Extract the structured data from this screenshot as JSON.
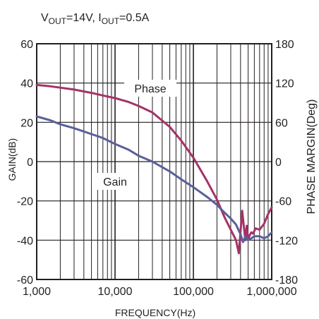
{
  "chart_data": {
    "type": "line",
    "title": "",
    "condition_text": {
      "v_main": "V",
      "v_sub": "OUT",
      "v_val": "=14V, ",
      "i_main": "I",
      "i_sub": "OUT",
      "i_val": "=0.5A"
    },
    "xlabel": "FREQUENCY(Hz)",
    "ylabel_left": "GAIN(dB)",
    "ylabel_right": "PHASE MARGIN(Deg)",
    "x_scale": "log",
    "xlim": [
      1000,
      1000000
    ],
    "x_ticks": [
      1000,
      10000,
      100000,
      1000000
    ],
    "x_tick_labels": [
      "1,000",
      "10,000",
      "100,000",
      "1,000,000"
    ],
    "ylim_left": [
      -60,
      60
    ],
    "y_ticks_left": [
      60,
      40,
      20,
      0,
      -20,
      -40,
      -60
    ],
    "y_tick_labels_left": [
      "60",
      "40",
      "20",
      "0",
      "-20",
      "-40",
      "-60"
    ],
    "ylim_right": [
      -180,
      180
    ],
    "y_ticks_right": [
      180,
      120,
      60,
      0,
      -60,
      -120,
      -180
    ],
    "y_tick_labels_right": [
      "180",
      "120",
      "60",
      "0",
      "-60",
      "-120",
      "-180"
    ],
    "grid": true,
    "series": [
      {
        "name": "Phase",
        "axis": "right",
        "color": "#a53267",
        "x": [
          1000,
          1500,
          2000,
          3000,
          5000,
          7000,
          10000,
          15000,
          20000,
          30000,
          50000,
          70000,
          100000,
          150000,
          200000,
          250000,
          300000,
          350000,
          380000,
          420000,
          440000,
          460000,
          480000,
          500000,
          520000,
          550000,
          580000,
          620000,
          700000,
          800000,
          900000,
          1000000
        ],
        "y": [
          117,
          115,
          113,
          110,
          105,
          101,
          97,
          91,
          85,
          75,
          53,
          32,
          6,
          -30,
          -58,
          -85,
          -104,
          -120,
          -140,
          -75,
          -98,
          -120,
          -98,
          -120,
          -113,
          -108,
          -110,
          -102,
          -104,
          -95,
          -80,
          -70
        ]
      },
      {
        "name": "Gain",
        "axis": "left",
        "color": "#5a5f9a",
        "x": [
          1000,
          1500,
          2000,
          3000,
          5000,
          7000,
          10000,
          15000,
          20000,
          30000,
          50000,
          70000,
          100000,
          150000,
          200000,
          250000,
          300000,
          350000,
          400000,
          430000,
          460000,
          500000,
          550000,
          600000,
          700000,
          800000,
          900000,
          1000000
        ],
        "y": [
          23,
          21,
          19,
          17,
          14,
          12,
          9,
          6,
          3,
          0,
          -5,
          -9,
          -13,
          -18,
          -22,
          -26,
          -29,
          -32,
          -37,
          -41,
          -38,
          -40,
          -39,
          -38,
          -38,
          -39,
          -38,
          -36
        ]
      }
    ]
  }
}
